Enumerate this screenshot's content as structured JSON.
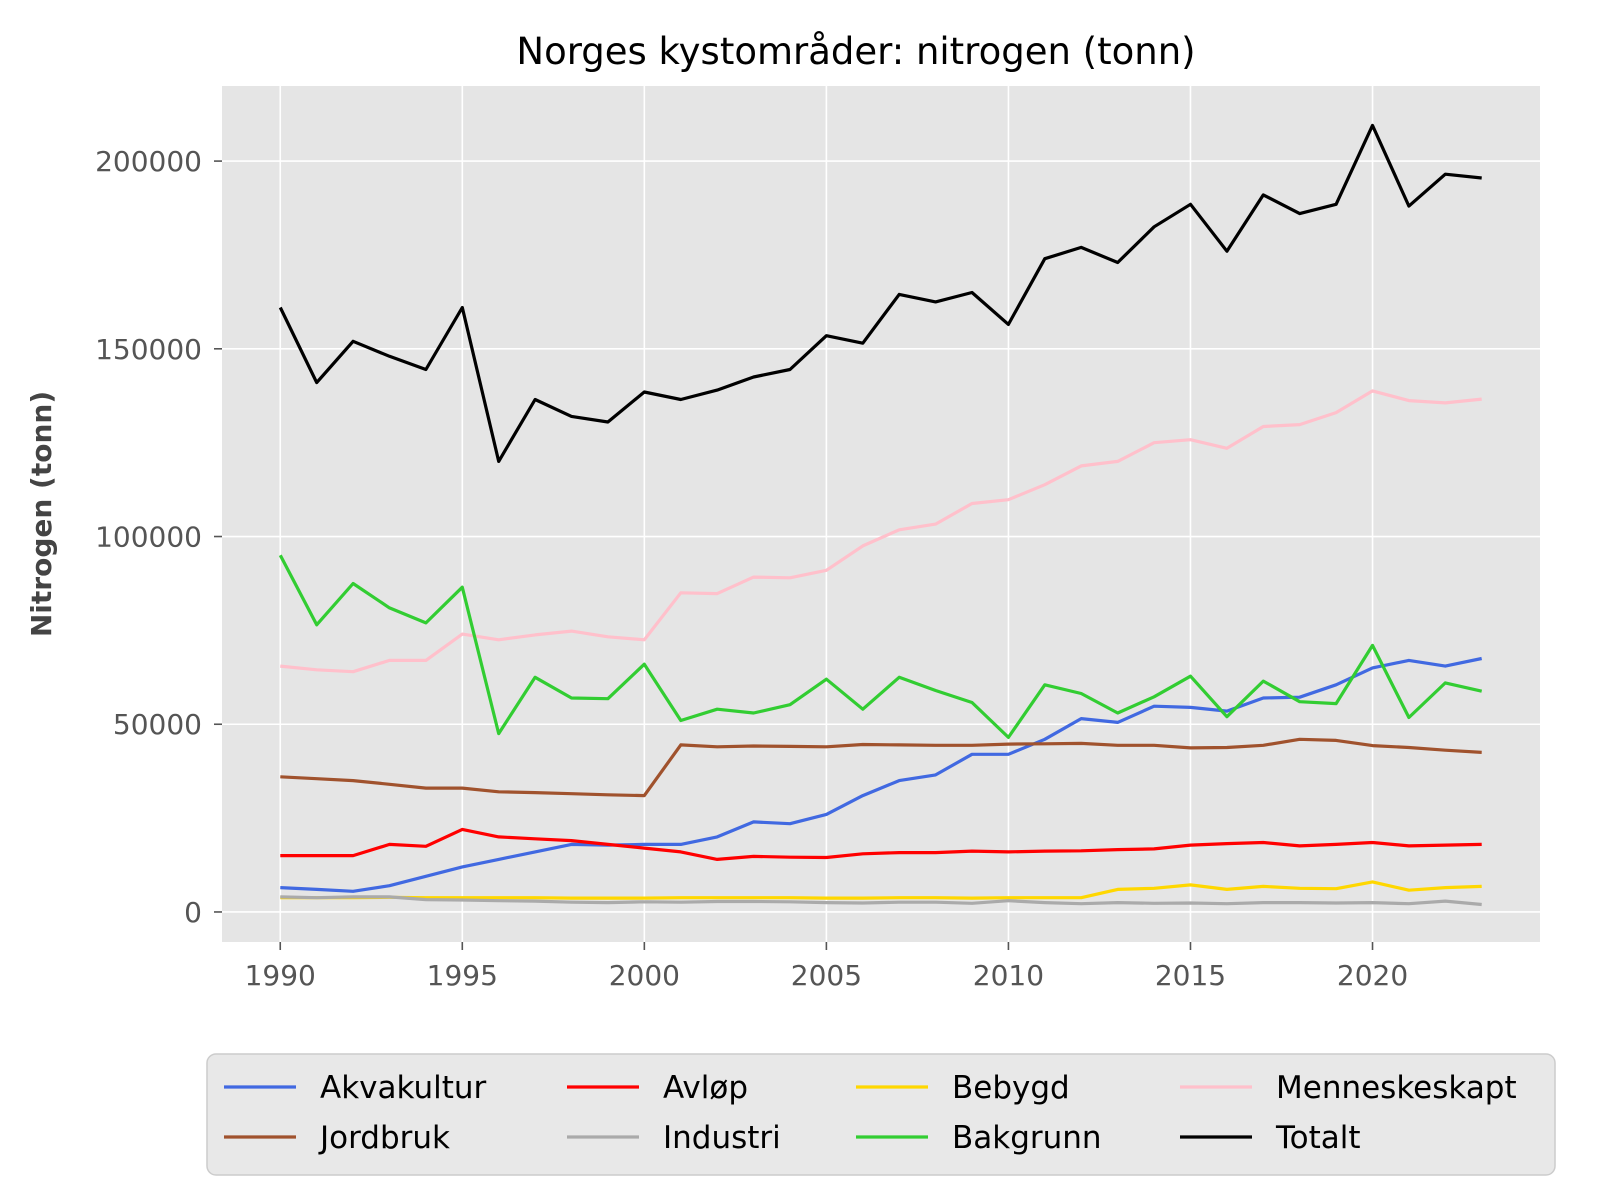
{
  "chart_data": {
    "type": "line",
    "title": "Norges kystområder: nitrogen (tonn)",
    "xlabel": "",
    "ylabel": "Nitrogen (tonn)",
    "xlim": [
      1988.4,
      2024.6
    ],
    "ylim": [
      -8000,
      220000
    ],
    "xticks": [
      1990,
      1995,
      2000,
      2005,
      2010,
      2015,
      2020
    ],
    "yticks": [
      0,
      50000,
      100000,
      150000,
      200000
    ],
    "grid": true,
    "legend_position": "bottom-center",
    "x": [
      1990,
      1991,
      1992,
      1993,
      1994,
      1995,
      1996,
      1997,
      1998,
      1999,
      2000,
      2001,
      2002,
      2003,
      2004,
      2005,
      2006,
      2007,
      2008,
      2009,
      2010,
      2011,
      2012,
      2013,
      2014,
      2015,
      2016,
      2017,
      2018,
      2019,
      2020,
      2021,
      2022,
      2023
    ],
    "series": [
      {
        "name": "Akvakultur",
        "color": "#4169e1",
        "values": [
          6500,
          6000,
          5500,
          7000,
          9500,
          12000,
          14000,
          16000,
          18000,
          17800,
          18000,
          18000,
          20000,
          24000,
          23500,
          26000,
          31000,
          35000,
          36500,
          42000,
          42000,
          46000,
          51500,
          50500,
          54800,
          54500,
          53500,
          57000,
          57200,
          60500,
          65000,
          67000,
          65500,
          67500
        ]
      },
      {
        "name": "Avløp",
        "color": "#ff0000",
        "values": [
          15000,
          15000,
          15000,
          18000,
          17500,
          22000,
          20000,
          19500,
          19000,
          18000,
          17000,
          16000,
          14000,
          14800,
          14600,
          14500,
          15500,
          15800,
          15800,
          16200,
          16000,
          16200,
          16300,
          16600,
          16800,
          17800,
          18200,
          18500,
          17600,
          18000,
          18500,
          17600,
          17800,
          18000
        ]
      },
      {
        "name": "Bebygd",
        "color": "#ffd700",
        "values": [
          3800,
          3800,
          3800,
          3900,
          3800,
          3800,
          3800,
          3800,
          3700,
          3700,
          3700,
          3800,
          3800,
          3800,
          3800,
          3700,
          3700,
          3800,
          3800,
          3700,
          3800,
          3800,
          3800,
          6000,
          6300,
          7200,
          6000,
          6800,
          6300,
          6200,
          8000,
          5800,
          6500,
          6800
        ]
      },
      {
        "name": "Menneskeskapt",
        "color": "#ffc0cb",
        "values": [
          65500,
          64500,
          64000,
          67000,
          67000,
          74000,
          72500,
          73800,
          74800,
          73300,
          72500,
          85000,
          84800,
          89200,
          89000,
          91000,
          97500,
          101800,
          103300,
          108800,
          109800,
          113800,
          118800,
          120000,
          125000,
          125800,
          123500,
          129300,
          129800,
          133000,
          138800,
          136200,
          135600,
          136600
        ]
      },
      {
        "name": "Jordbruk",
        "color": "#a0522d",
        "values": [
          36000,
          35500,
          35000,
          34000,
          33000,
          33000,
          32000,
          31800,
          31500,
          31200,
          31000,
          44500,
          44000,
          44200,
          44100,
          44000,
          44600,
          44500,
          44400,
          44400,
          44700,
          44800,
          44900,
          44400,
          44400,
          43700,
          43800,
          44400,
          46000,
          45700,
          44300,
          43800,
          43100,
          42500
        ]
      },
      {
        "name": "Industri",
        "color": "#aaaaaa",
        "values": [
          4000,
          3800,
          4000,
          4000,
          3300,
          3200,
          3000,
          2900,
          2600,
          2500,
          2700,
          2600,
          2800,
          2800,
          2700,
          2500,
          2400,
          2600,
          2600,
          2300,
          3000,
          2500,
          2200,
          2500,
          2300,
          2400,
          2200,
          2500,
          2500,
          2400,
          2500,
          2200,
          2900,
          2000
        ]
      },
      {
        "name": "Bakgrunn",
        "color": "#32cd32",
        "values": [
          95000,
          76500,
          87500,
          81000,
          77000,
          86500,
          47500,
          62500,
          57000,
          56800,
          66000,
          51000,
          54000,
          53000,
          55200,
          62000,
          54000,
          62500,
          59000,
          55800,
          46500,
          60500,
          58200,
          53000,
          57300,
          62800,
          52000,
          61500,
          56000,
          55500,
          71000,
          51800,
          61000,
          58800
        ]
      },
      {
        "name": "Totalt",
        "color": "#000000",
        "values": [
          161000,
          141000,
          152000,
          148000,
          144500,
          161000,
          120000,
          136500,
          132000,
          130500,
          138500,
          136500,
          139000,
          142500,
          144500,
          153500,
          151500,
          164500,
          162500,
          165000,
          156500,
          174000,
          177000,
          173000,
          182500,
          188500,
          176000,
          191000,
          186000,
          188500,
          209500,
          188000,
          196500,
          195500
        ]
      }
    ]
  },
  "legend": {
    "items": [
      {
        "label": "Akvakultur",
        "color": "#4169e1"
      },
      {
        "label": "Avløp",
        "color": "#ff0000"
      },
      {
        "label": "Bebygd",
        "color": "#ffd700"
      },
      {
        "label": "Menneskeskapt",
        "color": "#ffc0cb"
      },
      {
        "label": "Jordbruk",
        "color": "#a0522d"
      },
      {
        "label": "Industri",
        "color": "#aaaaaa"
      },
      {
        "label": "Bakgrunn",
        "color": "#32cd32"
      },
      {
        "label": "Totalt",
        "color": "#000000"
      }
    ]
  },
  "colors": {
    "plot_background": "#e5e5e5",
    "grid": "#ffffff",
    "legend_background": "#e8e8e8"
  }
}
